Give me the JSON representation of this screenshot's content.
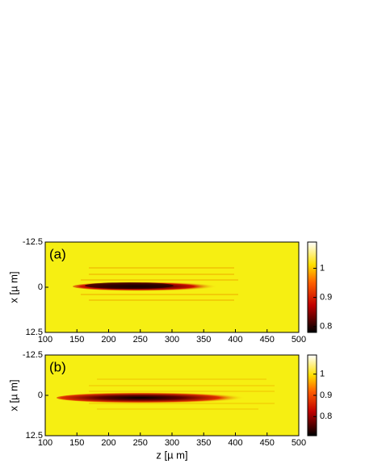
{
  "chart_data": [
    {
      "type": "heatmap",
      "label": "(a)",
      "ylabel": "x [µ m]",
      "xlim": [
        100,
        500
      ],
      "xticks": [
        100,
        150,
        200,
        250,
        300,
        350,
        400,
        450,
        500
      ],
      "ylim": [
        -12.5,
        12.5
      ],
      "yticks": [
        -12.5,
        0,
        12.5
      ],
      "yreverse": true,
      "colormap": "hot",
      "clim": [
        0.78,
        1.09
      ],
      "cticks": [
        0.8,
        0.9,
        1
      ]
    },
    {
      "type": "heatmap",
      "label": "(b)",
      "ylabel": "x [µ m]",
      "xlabel": "z [µ m]",
      "xlim": [
        100,
        500
      ],
      "xticks": [
        100,
        150,
        200,
        250,
        300,
        350,
        400,
        450,
        500
      ],
      "ylim": [
        -12.5,
        12.5
      ],
      "yticks": [
        -12.5,
        0,
        12.5
      ],
      "yreverse": true,
      "colormap": "hot",
      "clim": [
        0.71,
        1.09
      ],
      "cticks": [
        0.8,
        0.9,
        1
      ]
    }
  ]
}
